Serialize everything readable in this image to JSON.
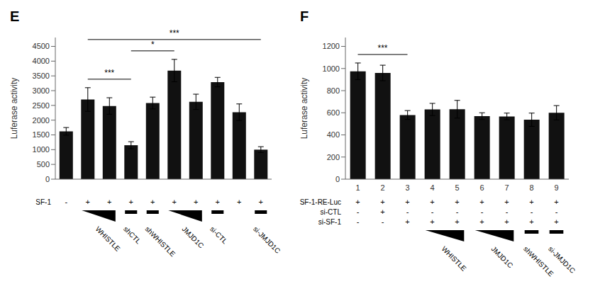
{
  "chart_data": [
    {
      "type": "bar",
      "title": "E",
      "categories": [
        null,
        null,
        null,
        null,
        null,
        null,
        null,
        null,
        null,
        null
      ],
      "values": [
        1620,
        2700,
        2480,
        1150,
        2580,
        3680,
        2620,
        3290,
        2270,
        1000
      ],
      "errors": [
        130,
        400,
        280,
        120,
        200,
        380,
        260,
        160,
        280,
        100
      ],
      "color": "#111111",
      "ylabel": "Luferase activity",
      "ylim": [
        0,
        4800
      ],
      "yticks": [
        0,
        500,
        1000,
        1500,
        2000,
        2500,
        3000,
        3500,
        4000,
        4500
      ],
      "rows": [
        {
          "label": "SF-1",
          "values": [
            "-",
            "+",
            "+",
            "+",
            "+",
            "+",
            "+",
            "+",
            "+",
            "+"
          ]
        }
      ],
      "groups": [
        {
          "label": "WHISTLE",
          "positions": [
            1,
            2
          ],
          "shape": "triangle"
        },
        {
          "label": "shCTL",
          "positions": [
            3
          ],
          "shape": "bar"
        },
        {
          "label": "shWHISTLE",
          "positions": [
            4
          ],
          "shape": "bar"
        },
        {
          "label": "JMJD1C",
          "positions": [
            5,
            6
          ],
          "shape": "triangle"
        },
        {
          "label": "si-CTL",
          "positions": [
            7
          ],
          "shape": "bar"
        },
        {
          "label": "si-JMJD1C",
          "positions": [
            9
          ],
          "shape": "bar"
        }
      ],
      "brackets": [
        {
          "positions": [
            1,
            3
          ],
          "text": "***"
        },
        {
          "positions": [
            3,
            5
          ],
          "text": "*"
        },
        {
          "positions": [
            1,
            9
          ],
          "text": "***"
        }
      ]
    },
    {
      "type": "bar",
      "title": "F",
      "categories": [
        "1",
        "2",
        "3",
        "4",
        "5",
        "6",
        "7",
        "8",
        "9"
      ],
      "values": [
        975,
        960,
        580,
        630,
        632,
        570,
        567,
        537,
        600
      ],
      "errors": [
        75,
        70,
        40,
        55,
        80,
        30,
        30,
        60,
        65
      ],
      "color": "#111111",
      "ylabel": "Luferase activity",
      "ylim": [
        0,
        1280
      ],
      "yticks": [
        0,
        200,
        400,
        600,
        800,
        1000,
        1200
      ],
      "rows": [
        {
          "label": "SF-1-RE-Luc",
          "values": [
            "+",
            "+",
            "+",
            "+",
            "+",
            "+",
            "+",
            "+",
            "+"
          ]
        },
        {
          "label": "si-CTL",
          "values": [
            "-",
            "+",
            "-",
            "-",
            "-",
            "-",
            "-",
            "-",
            "-"
          ]
        },
        {
          "label": "si-SF-1",
          "values": [
            "-",
            "-",
            "+",
            "+",
            "+",
            "+",
            "+",
            "+",
            "+"
          ]
        }
      ],
      "groups": [
        {
          "label": "WHISTLE",
          "positions": [
            3,
            4
          ],
          "shape": "triangle"
        },
        {
          "label": "JMJD1C",
          "positions": [
            5,
            6
          ],
          "shape": "triangle"
        },
        {
          "label": "shWHISTLE",
          "positions": [
            7
          ],
          "shape": "bar"
        },
        {
          "label": "si-JMJD1C",
          "positions": [
            8
          ],
          "shape": "bar"
        }
      ],
      "brackets": [
        {
          "positions": [
            0,
            2
          ],
          "text": "***"
        }
      ]
    }
  ]
}
